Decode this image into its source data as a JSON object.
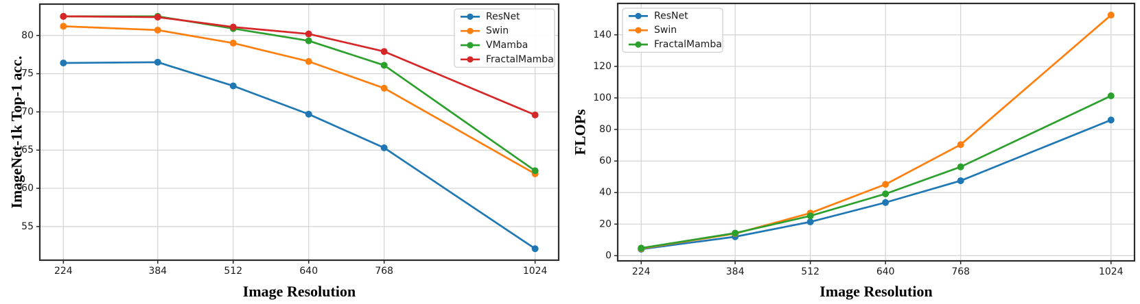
{
  "figure": {
    "background": "#ffffff",
    "description": "Two line charts comparing vision backbones across image resolutions"
  },
  "style": {
    "grid_color": "#d3d3d3",
    "frame_color": "#2b2b2b",
    "tick_color": "#262626",
    "text_color": "#1a1a1a",
    "legend_border": "#cccccc",
    "legend_background": "#ffffff"
  },
  "chart_data": [
    {
      "type": "line",
      "title": "",
      "xlabel": "Image Resolution",
      "ylabel": "ImageNet-1k Top-1 acc.",
      "x": [
        224,
        384,
        512,
        640,
        768,
        1024
      ],
      "xticks": [
        224,
        384,
        512,
        640,
        768,
        1024
      ],
      "yticks": [
        55,
        60,
        65,
        70,
        75,
        80
      ],
      "xlim": [
        184,
        1064
      ],
      "ylim": [
        50.6,
        84.1
      ],
      "grid": true,
      "legend_position": "top-right",
      "series": [
        {
          "name": "ResNet",
          "color": "#1f77b4",
          "values": [
            76.4,
            76.5,
            73.4,
            69.7,
            65.3,
            52.1
          ]
        },
        {
          "name": "Swin",
          "color": "#ff7f0e",
          "values": [
            81.2,
            80.7,
            79.0,
            76.6,
            73.1,
            61.9
          ]
        },
        {
          "name": "VMamba",
          "color": "#2ca02c",
          "values": [
            82.5,
            82.5,
            80.9,
            79.3,
            76.1,
            62.3
          ]
        },
        {
          "name": "FractalMamba",
          "color": "#d62728",
          "values": [
            82.5,
            82.4,
            81.1,
            80.2,
            77.9,
            69.6
          ]
        }
      ]
    },
    {
      "type": "line",
      "title": "",
      "xlabel": "Image Resolution",
      "ylabel": "FLOPs",
      "x": [
        224,
        384,
        512,
        640,
        768,
        1024
      ],
      "xticks": [
        224,
        384,
        512,
        640,
        768,
        1024
      ],
      "yticks": [
        0,
        20,
        40,
        60,
        80,
        100,
        120,
        140
      ],
      "xlim": [
        184,
        1064
      ],
      "ylim": [
        -3.3,
        159.9
      ],
      "grid": true,
      "legend_position": "top-left",
      "series": [
        {
          "name": "ResNet",
          "color": "#1f77b4",
          "values": [
            4.1,
            12.0,
            21.4,
            33.7,
            47.5,
            86.0
          ]
        },
        {
          "name": "Swin",
          "color": "#ff7f0e",
          "values": [
            4.5,
            14.0,
            27.0,
            45.2,
            70.4,
            152.5
          ]
        },
        {
          "name": "FractalMamba",
          "color": "#2ca02c",
          "values": [
            4.8,
            14.3,
            25.2,
            39.2,
            56.3,
            101.3
          ]
        }
      ]
    }
  ]
}
